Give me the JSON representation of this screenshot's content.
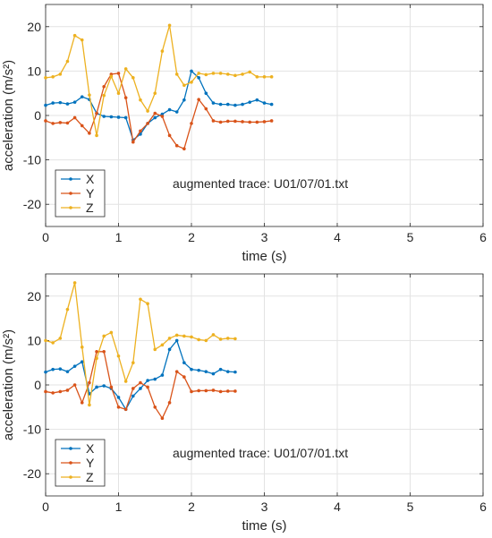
{
  "chart_data": [
    {
      "type": "line",
      "annotation": "augmented trace: U01/07/01.txt",
      "xlabel": "time (s)",
      "ylabel": "acceleration (m/s²)",
      "xlim": [
        0,
        6
      ],
      "ylim": [
        -25,
        25
      ],
      "xticks": [
        0,
        1,
        2,
        3,
        4,
        5,
        6
      ],
      "yticks": [
        -20,
        -10,
        0,
        10,
        20
      ],
      "grid": true,
      "legend_position": "bottom-left",
      "x": [
        0.0,
        0.1,
        0.2,
        0.3,
        0.4,
        0.5,
        0.6,
        0.7,
        0.8,
        0.9,
        1.0,
        1.1,
        1.2,
        1.3,
        1.4,
        1.5,
        1.6,
        1.7,
        1.8,
        1.9,
        2.0,
        2.1,
        2.2,
        2.3,
        2.4,
        2.5,
        2.6,
        2.7,
        2.8,
        2.9,
        3.0,
        3.1
      ],
      "series": [
        {
          "name": "X",
          "color": "#0072BD",
          "values": [
            2.3,
            2.8,
            2.9,
            2.6,
            3.0,
            4.2,
            3.6,
            0.5,
            -0.2,
            -0.3,
            -0.4,
            -0.5,
            -5.5,
            -4.2,
            -1.8,
            -0.5,
            0.3,
            1.3,
            0.8,
            3.5,
            10.0,
            8.5,
            5.0,
            2.8,
            2.5,
            2.5,
            2.3,
            2.5,
            3.0,
            3.5,
            2.8,
            2.5
          ]
        },
        {
          "name": "Y",
          "color": "#D95319",
          "values": [
            -1.2,
            -1.8,
            -1.6,
            -1.7,
            -0.5,
            -2.3,
            -4.0,
            0.5,
            6.5,
            9.3,
            9.5,
            4.0,
            -6.0,
            -3.5,
            -1.8,
            0.5,
            -0.2,
            -4.5,
            -6.8,
            -7.5,
            -1.8,
            3.6,
            1.5,
            -1.2,
            -1.5,
            -1.3,
            -1.3,
            -1.4,
            -1.5,
            -1.5,
            -1.4,
            -1.2
          ]
        },
        {
          "name": "Z",
          "color": "#EDB120",
          "values": [
            8.5,
            8.7,
            9.3,
            12.2,
            18.0,
            17.0,
            4.6,
            -4.5,
            4.5,
            8.8,
            5.0,
            10.5,
            8.5,
            3.5,
            1.0,
            5.0,
            14.5,
            20.3,
            9.3,
            6.8,
            7.5,
            9.5,
            9.2,
            9.5,
            9.5,
            9.3,
            9.0,
            9.3,
            9.8,
            8.7,
            8.7,
            8.7
          ]
        }
      ]
    },
    {
      "type": "line",
      "annotation": "augmented trace: U01/07/01.txt",
      "xlabel": "time (s)",
      "ylabel": "acceleration (m/s²)",
      "xlim": [
        0,
        6
      ],
      "ylim": [
        -25,
        25
      ],
      "xticks": [
        0,
        1,
        2,
        3,
        4,
        5,
        6
      ],
      "yticks": [
        -20,
        -10,
        0,
        10,
        20
      ],
      "grid": true,
      "legend_position": "bottom-left",
      "x": [
        0.0,
        0.1,
        0.2,
        0.3,
        0.4,
        0.5,
        0.6,
        0.7,
        0.8,
        0.9,
        1.0,
        1.1,
        1.2,
        1.3,
        1.4,
        1.5,
        1.6,
        1.7,
        1.8,
        1.9,
        2.0,
        2.1,
        2.2,
        2.3,
        2.4,
        2.5,
        2.6
      ],
      "series": [
        {
          "name": "X",
          "color": "#0072BD",
          "values": [
            2.9,
            3.5,
            3.6,
            3.0,
            4.2,
            5.2,
            -2.0,
            -0.5,
            -0.2,
            -0.8,
            -2.8,
            -5.5,
            -2.5,
            -0.8,
            1.0,
            1.3,
            2.2,
            8.0,
            10.0,
            5.0,
            3.5,
            3.3,
            3.0,
            2.5,
            3.5,
            3.0,
            2.9
          ]
        },
        {
          "name": "Y",
          "color": "#D95319",
          "values": [
            -1.5,
            -1.8,
            -1.5,
            -1.2,
            0.0,
            -4.0,
            0.5,
            7.5,
            7.5,
            -0.5,
            -5.0,
            -5.5,
            -0.8,
            0.5,
            -0.5,
            -5.0,
            -7.5,
            -4.0,
            3.0,
            1.8,
            -1.5,
            -1.3,
            -1.3,
            -1.2,
            -1.5,
            -1.4,
            -1.4
          ]
        },
        {
          "name": "Z",
          "color": "#EDB120",
          "values": [
            10.0,
            9.5,
            10.5,
            17.0,
            23.0,
            8.5,
            -4.5,
            6.0,
            11.0,
            11.8,
            6.5,
            0.8,
            5.0,
            19.3,
            18.3,
            8.0,
            9.0,
            10.5,
            11.2,
            11.0,
            10.8,
            10.2,
            10.0,
            11.3,
            10.3,
            10.5,
            10.4
          ]
        }
      ]
    }
  ]
}
